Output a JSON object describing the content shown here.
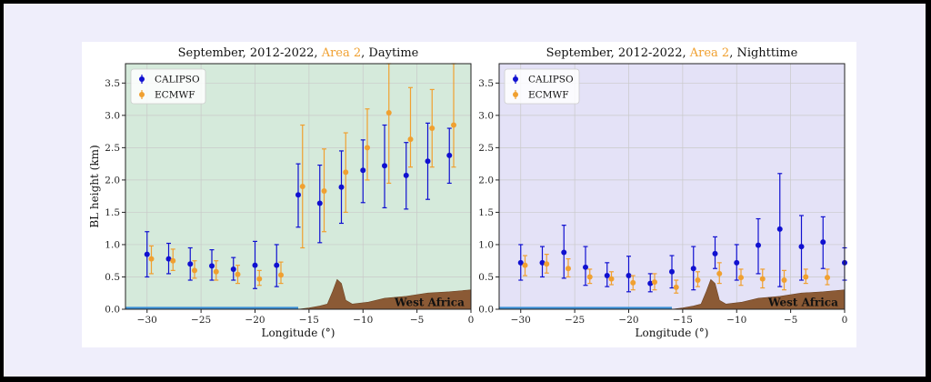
{
  "chart_data": [
    {
      "type": "scatter",
      "title_parts": [
        {
          "text": "September, 2012-2022, ",
          "color": "#111111"
        },
        {
          "text": "Area 2",
          "color": "#f0a030"
        },
        {
          "text": ", Daytime",
          "color": "#111111"
        }
      ],
      "xlabel": "Longitude (°)",
      "ylabel": "BL height (km)",
      "xlim": [
        -32,
        0
      ],
      "ylim": [
        0,
        3.8
      ],
      "xticks": [
        -30,
        -25,
        -20,
        -15,
        -10,
        -5,
        0
      ],
      "yticks": [
        0.0,
        0.5,
        1.0,
        1.5,
        2.0,
        2.5,
        3.0,
        3.5
      ],
      "grid": true,
      "background": "#d5eadb",
      "legend_position": "upper-left",
      "annotation": "West Africa",
      "series": [
        {
          "name": "CALIPSO",
          "color": "#1010d0",
          "x": [
            -30,
            -28,
            -26,
            -24,
            -22,
            -20,
            -18,
            -16,
            -14,
            -12,
            -10,
            -8,
            -6,
            -4,
            -2
          ],
          "y": [
            0.85,
            0.78,
            0.7,
            0.67,
            0.62,
            0.68,
            0.68,
            1.77,
            1.64,
            1.89,
            2.15,
            2.22,
            2.07,
            2.29,
            2.38
          ],
          "lo": [
            0.5,
            0.55,
            0.45,
            0.45,
            0.45,
            0.32,
            0.35,
            1.27,
            1.03,
            1.33,
            1.65,
            1.57,
            1.55,
            1.7,
            1.95
          ],
          "hi": [
            1.2,
            1.02,
            0.95,
            0.92,
            0.8,
            1.05,
            1.0,
            2.25,
            2.23,
            2.45,
            2.62,
            2.85,
            2.58,
            2.88,
            2.8
          ]
        },
        {
          "name": "ECMWF",
          "color": "#f0a030",
          "x": [
            -30,
            -28,
            -26,
            -24,
            -22,
            -20,
            -18,
            -16,
            -14,
            -12,
            -10,
            -8,
            -6,
            -4,
            -2
          ],
          "y": [
            0.78,
            0.75,
            0.6,
            0.58,
            0.54,
            0.47,
            0.53,
            1.9,
            1.83,
            2.12,
            2.5,
            3.04,
            2.63,
            2.8,
            2.85
          ],
          "lo": [
            0.55,
            0.6,
            0.48,
            0.45,
            0.4,
            0.37,
            0.4,
            0.95,
            1.2,
            1.5,
            2.0,
            1.95,
            2.2,
            2.2,
            2.2
          ],
          "hi": [
            0.98,
            0.93,
            0.75,
            0.75,
            0.68,
            0.6,
            0.73,
            2.85,
            2.48,
            2.73,
            3.1,
            3.8,
            3.43,
            3.4,
            3.8
          ]
        }
      ]
    },
    {
      "type": "scatter",
      "title_parts": [
        {
          "text": "September, 2012-2022, ",
          "color": "#111111"
        },
        {
          "text": "Area 2",
          "color": "#f0a030"
        },
        {
          "text": ", Nighttime",
          "color": "#111111"
        }
      ],
      "xlabel": "Longitude (°)",
      "ylabel": "",
      "xlim": [
        -32,
        0
      ],
      "ylim": [
        0,
        3.8
      ],
      "xticks": [
        -30,
        -25,
        -20,
        -15,
        -10,
        -5,
        0
      ],
      "yticks": [
        0.0,
        0.5,
        1.0,
        1.5,
        2.0,
        2.5,
        3.0,
        3.5
      ],
      "grid": true,
      "background": "#e4e2f7",
      "legend_position": "upper-left",
      "annotation": "West Africa",
      "series": [
        {
          "name": "CALIPSO",
          "color": "#1010d0",
          "x": [
            -30,
            -28,
            -26,
            -24,
            -22,
            -20,
            -18,
            -16,
            -14,
            -12,
            -10,
            -8,
            -6,
            -4,
            -2,
            0
          ],
          "y": [
            0.72,
            0.72,
            0.88,
            0.65,
            0.52,
            0.52,
            0.4,
            0.58,
            0.63,
            0.86,
            0.72,
            0.99,
            1.24,
            0.97,
            1.04,
            0.72
          ],
          "lo": [
            0.45,
            0.5,
            0.48,
            0.37,
            0.35,
            0.27,
            0.27,
            0.33,
            0.3,
            0.63,
            0.45,
            0.55,
            0.35,
            0.45,
            0.63,
            0.45
          ],
          "hi": [
            1.0,
            0.97,
            1.3,
            0.97,
            0.72,
            0.82,
            0.55,
            0.83,
            0.97,
            1.12,
            1.0,
            1.4,
            2.1,
            1.45,
            1.43,
            0.95
          ]
        },
        {
          "name": "ECMWF",
          "color": "#f0a030",
          "x": [
            -30,
            -28,
            -26,
            -24,
            -22,
            -20,
            -18,
            -16,
            -14,
            -12,
            -10,
            -8,
            -6,
            -4,
            -2
          ],
          "y": [
            0.68,
            0.7,
            0.63,
            0.5,
            0.47,
            0.41,
            0.42,
            0.34,
            0.45,
            0.55,
            0.49,
            0.47,
            0.45,
            0.5,
            0.49
          ],
          "lo": [
            0.52,
            0.56,
            0.5,
            0.4,
            0.38,
            0.3,
            0.3,
            0.25,
            0.35,
            0.4,
            0.37,
            0.33,
            0.3,
            0.4,
            0.38
          ],
          "hi": [
            0.83,
            0.85,
            0.78,
            0.62,
            0.58,
            0.52,
            0.55,
            0.45,
            0.58,
            0.72,
            0.62,
            0.62,
            0.6,
            0.62,
            0.62
          ]
        }
      ]
    }
  ]
}
